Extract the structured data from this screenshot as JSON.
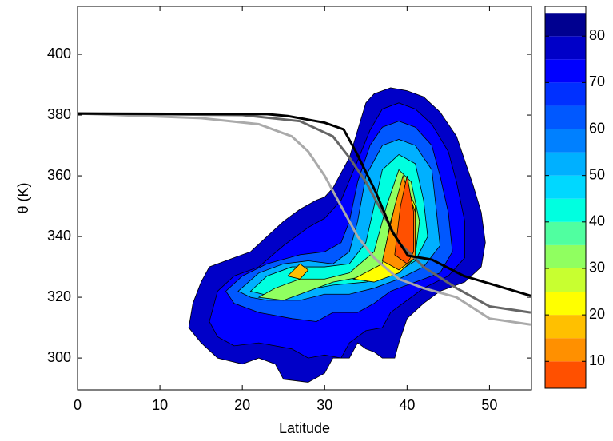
{
  "chart_data": {
    "type": "contour",
    "xlabel": "Latitude",
    "ylabel": "θ (K)",
    "xlim": [
      0,
      55.1
    ],
    "ylim": [
      289.5,
      415.8
    ],
    "xticks": [
      0,
      10,
      20,
      30,
      40,
      50
    ],
    "yticks": [
      300,
      320,
      340,
      360,
      380,
      400
    ],
    "grid": false,
    "colorbar": {
      "clim": [
        4.2,
        86.4
      ],
      "ticks": [
        10,
        20,
        30,
        40,
        50,
        60,
        70,
        80
      ],
      "levels": [
        5,
        10,
        15,
        20,
        25,
        30,
        35,
        40,
        45,
        50,
        55,
        60,
        65,
        70,
        75,
        80,
        85
      ],
      "colors": [
        "#ff5000",
        "#ff9000",
        "#ffc000",
        "#ffff00",
        "#c8ff30",
        "#90ff60",
        "#50ffa0",
        "#00ffe0",
        "#00d8ff",
        "#00b0ff",
        "#0080ff",
        "#0058ff",
        "#0030ff",
        "#0000ff",
        "#0000c8",
        "#000090"
      ],
      "above_color": "#ffffff"
    },
    "regions": [
      {
        "level": 80,
        "x": [
          13.5,
          14,
          15,
          16,
          17,
          19,
          21,
          23,
          25,
          27,
          29,
          30,
          31,
          33,
          34,
          35,
          36,
          38,
          40,
          42,
          44,
          46,
          47,
          48,
          49,
          49.5,
          49,
          47,
          44,
          42,
          40,
          39,
          38.5,
          37,
          36,
          35,
          34,
          33,
          31,
          30,
          28,
          25,
          24,
          22,
          20,
          17,
          15
        ],
        "y": [
          310,
          318,
          325,
          330,
          331,
          333,
          335,
          340,
          345,
          349,
          352,
          353,
          356,
          366,
          375,
          384,
          387,
          389,
          388,
          386,
          381,
          373,
          365,
          357,
          348,
          338,
          330,
          325,
          322,
          318,
          313,
          305,
          300,
          300,
          302,
          303,
          305,
          300,
          300,
          295,
          292,
          293,
          298,
          300,
          298,
          300,
          305
        ]
      },
      {
        "level": 75,
        "x": [
          16,
          17,
          19,
          22,
          25,
          28,
          30,
          32,
          34,
          35.5,
          37,
          39,
          41,
          43,
          45,
          46,
          47,
          47,
          45,
          42,
          40,
          38,
          37,
          35,
          33,
          32,
          30,
          28,
          26,
          22,
          19,
          17
        ],
        "y": [
          312,
          322,
          327,
          330,
          337,
          343,
          346,
          352,
          365,
          375,
          382,
          384,
          382,
          377,
          368,
          358,
          345,
          333,
          327,
          323,
          319,
          315,
          310,
          309,
          305,
          300,
          301,
          300,
          303,
          305,
          304,
          307
        ]
      },
      {
        "level": 65,
        "x": [
          18,
          20,
          23,
          27,
          30,
          32,
          33,
          34,
          35.5,
          37,
          39,
          41,
          43,
          44,
          45,
          45.5,
          44,
          41,
          38,
          36,
          34,
          31,
          29,
          26,
          22,
          19
        ],
        "y": [
          322,
          327,
          331,
          334,
          335,
          338,
          345,
          358,
          370,
          376,
          378,
          376,
          370,
          360,
          348,
          335,
          328,
          325,
          322,
          318,
          315,
          315,
          312,
          313,
          315,
          318
        ]
      },
      {
        "level": 55,
        "x": [
          19.5,
          22,
          25,
          28,
          31,
          33,
          34,
          35,
          37,
          39,
          41,
          43,
          43.5,
          44,
          42,
          39,
          36,
          33,
          30,
          27,
          23,
          21
        ],
        "y": [
          322,
          328,
          331,
          332,
          331,
          335,
          345,
          360,
          370,
          372,
          370,
          362,
          350,
          337,
          330,
          326,
          323,
          321,
          321,
          319,
          319,
          320
        ]
      },
      {
        "level": 45,
        "x": [
          21,
          23,
          26,
          30,
          33,
          35,
          36,
          37,
          39,
          41,
          42,
          42.5,
          41,
          38,
          35,
          31,
          27,
          24
        ],
        "y": [
          322,
          327,
          330,
          330,
          331,
          338,
          350,
          362,
          367,
          364,
          352,
          340,
          332,
          327,
          325,
          324,
          322,
          320
        ]
      },
      {
        "level": 35,
        "x": [
          22,
          24,
          27,
          30,
          33,
          36,
          37.5,
          39,
          40.5,
          41.5,
          41,
          38,
          35,
          31,
          28,
          25
        ],
        "y": [
          320,
          323,
          326,
          326,
          328,
          335,
          350,
          362,
          358,
          345,
          334,
          329,
          327,
          325,
          322,
          319
        ]
      },
      {
        "level": 25,
        "x": [
          33.5,
          37,
          38,
          39.5,
          41,
          41,
          39,
          36
        ],
        "y": [
          326,
          331,
          345,
          359,
          350,
          333,
          328,
          325
        ]
      },
      {
        "level": 20,
        "x": [
          25.5,
          27,
          28,
          27
        ],
        "y": [
          327,
          331,
          329,
          326
        ]
      },
      {
        "level": 15,
        "x": [
          37,
          38.5,
          39.5,
          41,
          41,
          39
        ],
        "y": [
          332,
          350,
          360,
          348,
          333,
          329
        ]
      },
      {
        "level": 10,
        "x": [
          38.5,
          39.2,
          40,
          40.8,
          40.8,
          40
        ],
        "y": [
          334,
          350,
          360,
          348,
          335,
          331
        ]
      }
    ],
    "series": [
      {
        "color": "#aaaaaa",
        "x": [
          0,
          15,
          22,
          26,
          28,
          30,
          32,
          34,
          36,
          39,
          42,
          46,
          50,
          55
        ],
        "values": [
          380.5,
          379,
          377,
          373,
          368,
          360,
          350,
          340,
          333,
          326,
          323,
          320,
          313,
          311
        ]
      },
      {
        "color": "#666666",
        "x": [
          0,
          20,
          27,
          31,
          33,
          35,
          37,
          39,
          42,
          46,
          50,
          55
        ],
        "values": [
          380.5,
          380,
          378,
          373,
          366,
          358,
          348,
          338,
          330,
          323,
          317,
          315
        ]
      },
      {
        "color": "#000000",
        "x": [
          0,
          23,
          25.5,
          30,
          32.3,
          33.8,
          36.2,
          38.2,
          40.1,
          43,
          46.9,
          55
        ],
        "values": [
          380.5,
          380.3,
          379.7,
          377.5,
          375.3,
          367.9,
          354.7,
          341.6,
          333.7,
          332.4,
          327,
          320.5
        ]
      }
    ]
  }
}
